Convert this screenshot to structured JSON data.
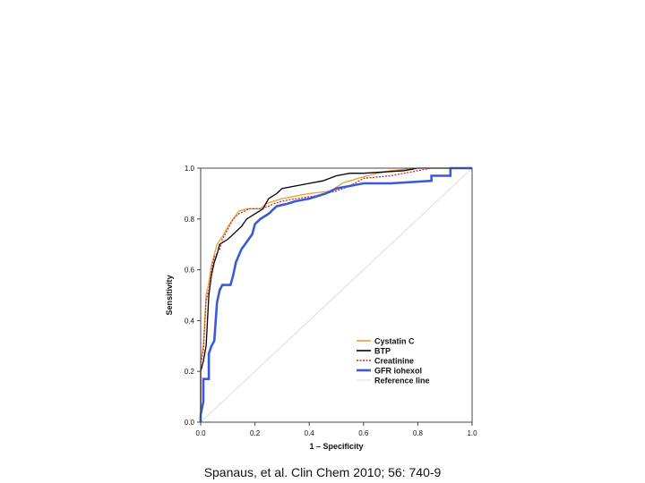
{
  "chart_data": {
    "type": "line",
    "xlabel": "1 – Specificity",
    "ylabel": "Sensitivity",
    "xlim": [
      0.0,
      1.0
    ],
    "ylim": [
      0.0,
      1.0
    ],
    "xticks": [
      "0.0",
      "0.2",
      "0.4",
      "0.6",
      "0.8",
      "1.0"
    ],
    "yticks": [
      "0.0",
      "0.2",
      "0.4",
      "0.6",
      "0.8",
      "1.0"
    ],
    "grid": false,
    "legend_position": "bottom-right",
    "series": [
      {
        "name": "Cystatin C",
        "color": "#e8a033",
        "style": "solid",
        "points": [
          [
            0,
            0
          ],
          [
            0,
            0.24
          ],
          [
            0.01,
            0.3
          ],
          [
            0.02,
            0.5
          ],
          [
            0.03,
            0.55
          ],
          [
            0.04,
            0.62
          ],
          [
            0.05,
            0.66
          ],
          [
            0.06,
            0.7
          ],
          [
            0.08,
            0.73
          ],
          [
            0.1,
            0.77
          ],
          [
            0.12,
            0.8
          ],
          [
            0.14,
            0.83
          ],
          [
            0.17,
            0.84
          ],
          [
            0.22,
            0.84
          ],
          [
            0.24,
            0.86
          ],
          [
            0.27,
            0.87
          ],
          [
            0.3,
            0.88
          ],
          [
            0.35,
            0.89
          ],
          [
            0.4,
            0.9
          ],
          [
            0.48,
            0.91
          ],
          [
            0.52,
            0.94
          ],
          [
            0.58,
            0.96
          ],
          [
            0.65,
            0.98
          ],
          [
            0.7,
            0.99
          ],
          [
            0.8,
            1.0
          ],
          [
            1.0,
            1.0
          ]
        ]
      },
      {
        "name": "BTP",
        "color": "#000000",
        "style": "solid",
        "points": [
          [
            0,
            0
          ],
          [
            0,
            0.2
          ],
          [
            0.01,
            0.24
          ],
          [
            0.02,
            0.3
          ],
          [
            0.03,
            0.5
          ],
          [
            0.04,
            0.58
          ],
          [
            0.05,
            0.63
          ],
          [
            0.06,
            0.66
          ],
          [
            0.07,
            0.7
          ],
          [
            0.1,
            0.72
          ],
          [
            0.12,
            0.74
          ],
          [
            0.15,
            0.77
          ],
          [
            0.17,
            0.8
          ],
          [
            0.2,
            0.82
          ],
          [
            0.23,
            0.84
          ],
          [
            0.25,
            0.88
          ],
          [
            0.28,
            0.9
          ],
          [
            0.3,
            0.92
          ],
          [
            0.35,
            0.93
          ],
          [
            0.4,
            0.94
          ],
          [
            0.45,
            0.95
          ],
          [
            0.5,
            0.97
          ],
          [
            0.55,
            0.98
          ],
          [
            0.6,
            0.98
          ],
          [
            0.75,
            0.99
          ],
          [
            0.8,
            1.0
          ],
          [
            1.0,
            1.0
          ]
        ]
      },
      {
        "name": "Creatinine",
        "color": "#c42a3a",
        "style": "dotted",
        "points": [
          [
            0,
            0
          ],
          [
            0,
            0.23
          ],
          [
            0.01,
            0.28
          ],
          [
            0.02,
            0.48
          ],
          [
            0.03,
            0.52
          ],
          [
            0.04,
            0.6
          ],
          [
            0.05,
            0.65
          ],
          [
            0.07,
            0.68
          ],
          [
            0.08,
            0.72
          ],
          [
            0.1,
            0.76
          ],
          [
            0.12,
            0.8
          ],
          [
            0.14,
            0.82
          ],
          [
            0.18,
            0.84
          ],
          [
            0.22,
            0.84
          ],
          [
            0.25,
            0.85
          ],
          [
            0.27,
            0.86
          ],
          [
            0.3,
            0.87
          ],
          [
            0.35,
            0.88
          ],
          [
            0.42,
            0.89
          ],
          [
            0.5,
            0.91
          ],
          [
            0.55,
            0.93
          ],
          [
            0.6,
            0.96
          ],
          [
            0.7,
            0.97
          ],
          [
            0.8,
            0.99
          ],
          [
            0.85,
            1.0
          ],
          [
            1.0,
            1.0
          ]
        ]
      },
      {
        "name": "GFR iohexol",
        "color": "#3a5bd8",
        "style": "solid",
        "points": [
          [
            0,
            0
          ],
          [
            0,
            0.03
          ],
          [
            0.01,
            0.08
          ],
          [
            0.01,
            0.17
          ],
          [
            0.03,
            0.17
          ],
          [
            0.03,
            0.27
          ],
          [
            0.04,
            0.3
          ],
          [
            0.05,
            0.32
          ],
          [
            0.06,
            0.47
          ],
          [
            0.07,
            0.52
          ],
          [
            0.08,
            0.54
          ],
          [
            0.11,
            0.54
          ],
          [
            0.12,
            0.58
          ],
          [
            0.13,
            0.63
          ],
          [
            0.15,
            0.68
          ],
          [
            0.17,
            0.71
          ],
          [
            0.19,
            0.74
          ],
          [
            0.2,
            0.78
          ],
          [
            0.22,
            0.8
          ],
          [
            0.25,
            0.82
          ],
          [
            0.28,
            0.85
          ],
          [
            0.32,
            0.86
          ],
          [
            0.35,
            0.87
          ],
          [
            0.4,
            0.88
          ],
          [
            0.46,
            0.9
          ],
          [
            0.5,
            0.92
          ],
          [
            0.55,
            0.93
          ],
          [
            0.6,
            0.94
          ],
          [
            0.7,
            0.94
          ],
          [
            0.85,
            0.95
          ],
          [
            0.85,
            0.97
          ],
          [
            0.92,
            0.97
          ],
          [
            0.92,
            1.0
          ],
          [
            1.0,
            1.0
          ]
        ]
      },
      {
        "name": "Reference line",
        "color": "#d6d6d6",
        "style": "solid",
        "points": [
          [
            0,
            0
          ],
          [
            1,
            1
          ]
        ]
      }
    ]
  },
  "footer": {
    "citation": "Spanaus, et al. Clin Chem 2010; 56: 740-9"
  }
}
